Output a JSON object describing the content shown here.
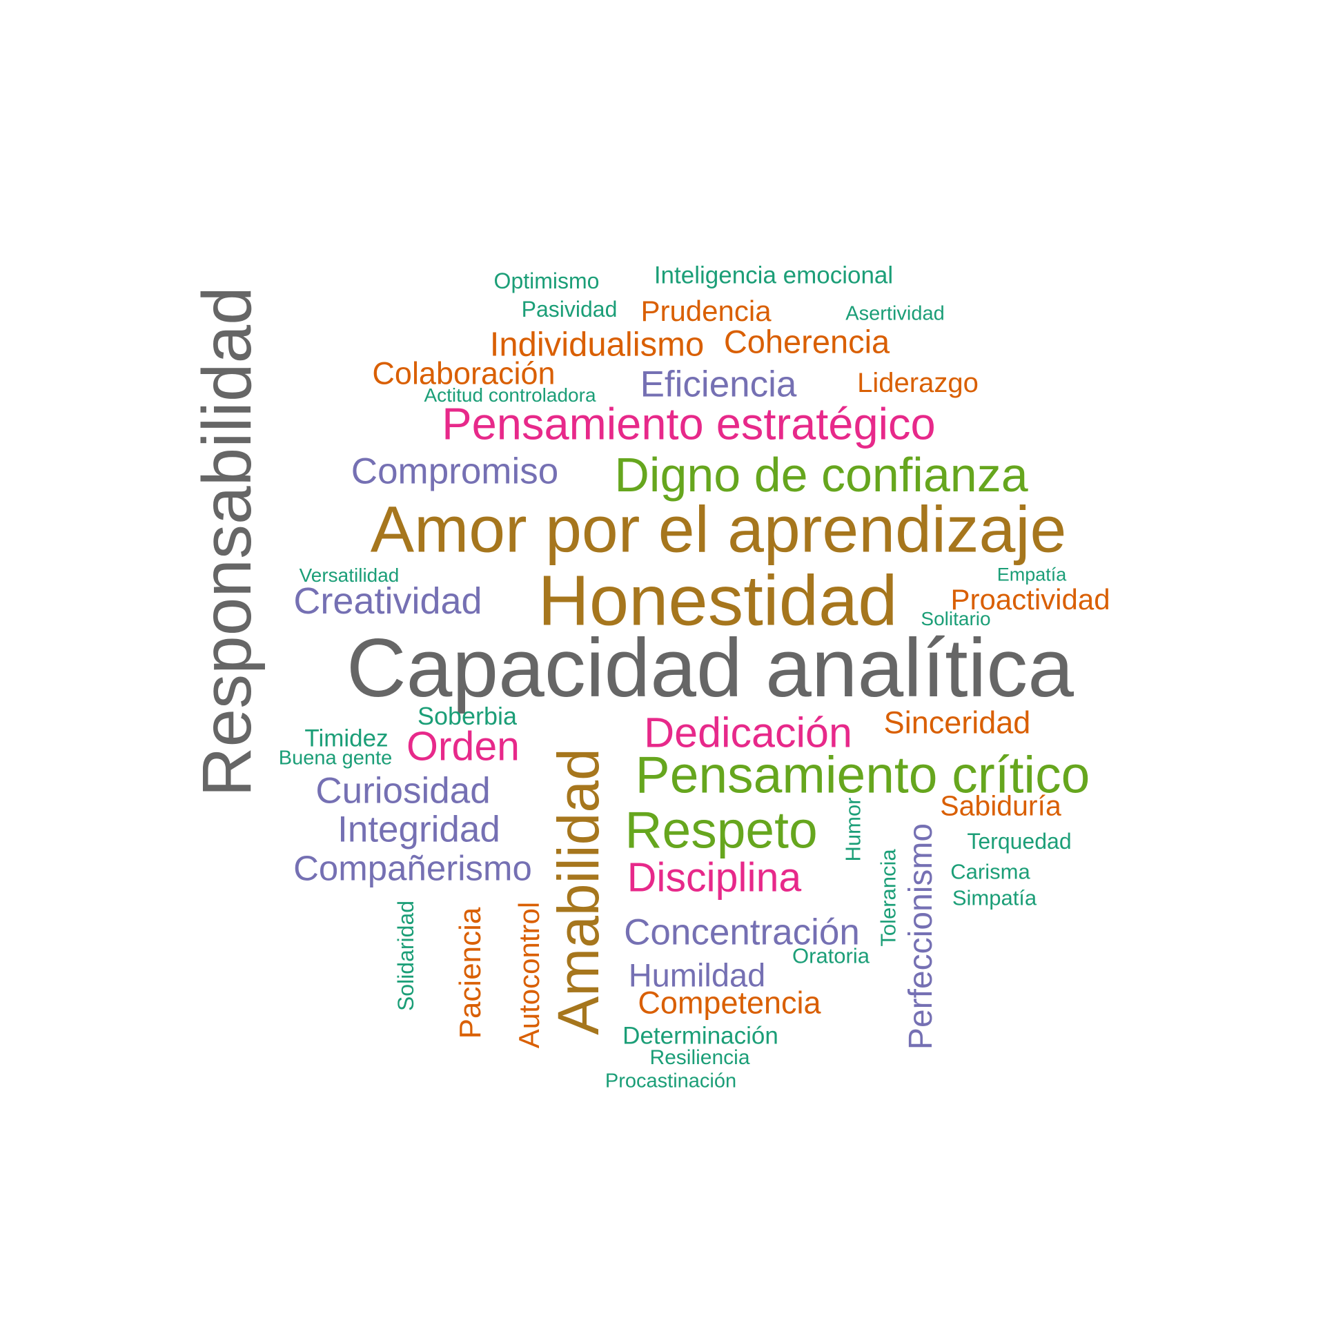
{
  "palette": {
    "teal": "#1b9e77",
    "orange": "#d95f02",
    "purple": "#7570b3",
    "magenta": "#e7298a",
    "green": "#66a61e",
    "gold": "#a6761d",
    "gray": "#666666"
  },
  "words": [
    {
      "text": "Capacidad analítica",
      "color": "gray"
    },
    {
      "text": "Responsabilidad",
      "color": "gray"
    },
    {
      "text": "Honestidad",
      "color": "gold"
    },
    {
      "text": "Amor por el aprendizaje",
      "color": "gold"
    },
    {
      "text": "Amabilidad",
      "color": "gold"
    },
    {
      "text": "Pensamiento crítico",
      "color": "green"
    },
    {
      "text": "Digno de confianza",
      "color": "green"
    },
    {
      "text": "Respeto",
      "color": "green"
    },
    {
      "text": "Pensamiento estratégico",
      "color": "magenta"
    },
    {
      "text": "Dedicación",
      "color": "magenta"
    },
    {
      "text": "Disciplina",
      "color": "magenta"
    },
    {
      "text": "Orden",
      "color": "magenta"
    },
    {
      "text": "Compromiso",
      "color": "purple"
    },
    {
      "text": "Eficiencia",
      "color": "purple"
    },
    {
      "text": "Creatividad",
      "color": "purple"
    },
    {
      "text": "Curiosidad",
      "color": "purple"
    },
    {
      "text": "Integridad",
      "color": "purple"
    },
    {
      "text": "Compañerismo",
      "color": "purple"
    },
    {
      "text": "Concentración",
      "color": "purple"
    },
    {
      "text": "Humildad",
      "color": "purple"
    },
    {
      "text": "Perfeccionismo",
      "color": "purple"
    },
    {
      "text": "Individualismo",
      "color": "orange"
    },
    {
      "text": "Coherencia",
      "color": "orange"
    },
    {
      "text": "Colaboración",
      "color": "orange"
    },
    {
      "text": "Prudencia",
      "color": "orange"
    },
    {
      "text": "Liderazgo",
      "color": "orange"
    },
    {
      "text": "Proactividad",
      "color": "orange"
    },
    {
      "text": "Sinceridad",
      "color": "orange"
    },
    {
      "text": "Sabiduría",
      "color": "orange"
    },
    {
      "text": "Competencia",
      "color": "orange"
    },
    {
      "text": "Paciencia",
      "color": "orange"
    },
    {
      "text": "Autocontrol",
      "color": "orange"
    },
    {
      "text": "Inteligencia emocional",
      "color": "teal"
    },
    {
      "text": "Optimismo",
      "color": "teal"
    },
    {
      "text": "Pasividad",
      "color": "teal"
    },
    {
      "text": "Asertividad",
      "color": "teal"
    },
    {
      "text": "Actitud controladora",
      "color": "teal"
    },
    {
      "text": "Versatilidad",
      "color": "teal"
    },
    {
      "text": "Empatía",
      "color": "teal"
    },
    {
      "text": "Solitario",
      "color": "teal"
    },
    {
      "text": "Soberbia",
      "color": "teal"
    },
    {
      "text": "Timidez",
      "color": "teal"
    },
    {
      "text": "Buena gente",
      "color": "teal"
    },
    {
      "text": "Terquedad",
      "color": "teal"
    },
    {
      "text": "Carisma",
      "color": "teal"
    },
    {
      "text": "Simpatía",
      "color": "teal"
    },
    {
      "text": "Oratoria",
      "color": "teal"
    },
    {
      "text": "Determinación",
      "color": "teal"
    },
    {
      "text": "Resiliencia",
      "color": "teal"
    },
    {
      "text": "Procastinación",
      "color": "teal"
    },
    {
      "text": "Humor",
      "color": "teal"
    },
    {
      "text": "Tolerancia",
      "color": "teal"
    },
    {
      "text": "Solidaridad",
      "color": "teal"
    }
  ]
}
